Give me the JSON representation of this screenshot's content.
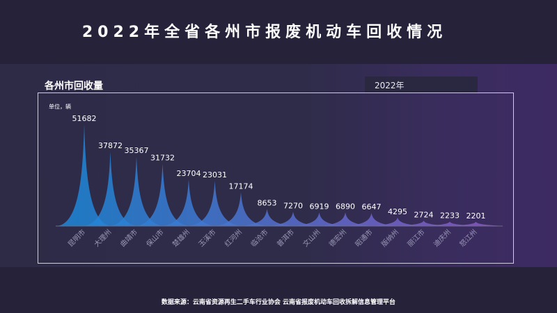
{
  "title": "2022年全省各州市报废机动车回收情况",
  "section_title": "各州市回收量",
  "year_filter": "2022年",
  "source": "数据来源：云南省资源再生二手车行业协会     云南省报废机动车回收拆解信息管理平台",
  "chart_data": {
    "type": "bar",
    "unit_label": "单位，辆",
    "categories": [
      "昆明市",
      "大理州",
      "曲靖市",
      "保山市",
      "楚雄州",
      "玉溪市",
      "红河州",
      "临沧市",
      "普洱市",
      "文山州",
      "德宏州",
      "昭通市",
      "版纳州",
      "丽江市",
      "迪庆州",
      "怒江州"
    ],
    "values": [
      51682,
      37872,
      35367,
      31732,
      23704,
      23031,
      17174,
      8653,
      7270,
      6919,
      6890,
      6647,
      4295,
      2724,
      2233,
      2201
    ],
    "ylim": [
      0,
      52000
    ],
    "colors": [
      "#1d87d8",
      "#8a58c6"
    ],
    "grid": false,
    "legend": "none"
  }
}
